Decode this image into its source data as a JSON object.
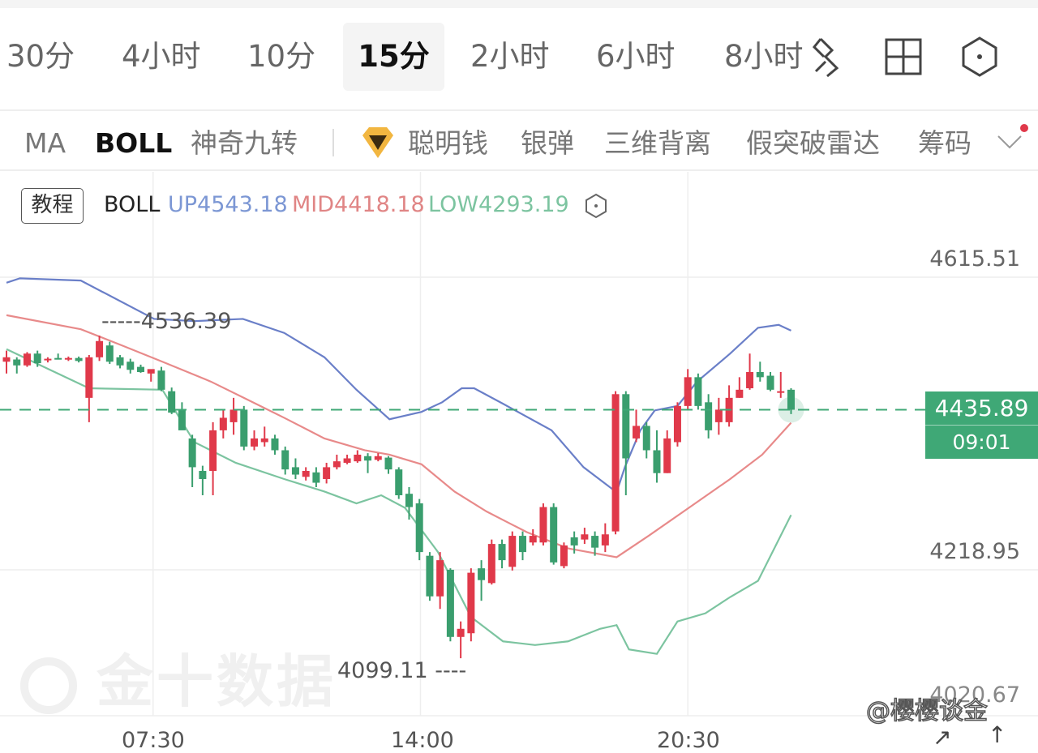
{
  "timeframes": [
    "30分",
    "4小时",
    "10分",
    "15分",
    "2小时",
    "6小时",
    "8小时"
  ],
  "active_timeframe": "15分",
  "toolbar_icons": [
    "draw-tool-icon",
    "layout-grid-icon",
    "settings-hexagon-icon"
  ],
  "indicators": [
    "MA",
    "BOLL",
    "神奇九转",
    "聪明钱",
    "银弹",
    "三维背离",
    "假突破雷达",
    "筹码"
  ],
  "active_indicator": "BOLL",
  "legend": {
    "tutorial": "教程",
    "name": "BOLL",
    "up": "UP4543.18",
    "mid": "MID4418.18",
    "low": "LOW4293.19"
  },
  "current_price": {
    "value": "4435.89",
    "countdown": "09:01"
  },
  "markers": {
    "high": "4536.39",
    "low": "4099.11"
  },
  "watermark": "金十数据",
  "weibo": "@樱樱谈金",
  "colors": {
    "up_candle": "#e0394a",
    "down_candle": "#3a9e6e",
    "boll_up": "#6a7fc8",
    "boll_mid": "#e88a8a",
    "boll_low": "#7cc4a0",
    "price_line": "#3fa876"
  },
  "chart_data": {
    "type": "candlestick",
    "interval": "15分",
    "y_ticks": [
      "4615.51",
      "4218.95",
      "4020.67"
    ],
    "x_ticks": [
      {
        "label": "07:30",
        "index": 14.2
      },
      {
        "label": "14:00",
        "index": 40.1
      },
      {
        "label": "20:30",
        "index": 66.0
      }
    ],
    "ylim": [
      4020.67,
      4758
    ],
    "grid": true,
    "candles_ohlc": [
      [
        4501,
        4516,
        4485,
        4507
      ],
      [
        4504,
        4507,
        4485,
        4496
      ],
      [
        4496,
        4514,
        4494,
        4512
      ],
      [
        4512,
        4516,
        4494,
        4499
      ],
      [
        4503,
        4507,
        4500,
        4505
      ],
      [
        4506,
        4512,
        4504,
        4504
      ],
      [
        4504,
        4508,
        4502,
        4506
      ],
      [
        4506,
        4508,
        4500,
        4502
      ],
      [
        4452,
        4510,
        4419,
        4507
      ],
      [
        4507,
        4536.39,
        4502,
        4529
      ],
      [
        4523,
        4528,
        4498,
        4501
      ],
      [
        4507,
        4510,
        4492,
        4496
      ],
      [
        4501,
        4505,
        4485,
        4490
      ],
      [
        4494,
        4497,
        4486,
        4487
      ],
      [
        4485,
        4490,
        4474,
        4491
      ],
      [
        4489,
        4494,
        4461,
        4463
      ],
      [
        4461,
        4466,
        4430,
        4432
      ],
      [
        4436,
        4446,
        4413,
        4408
      ],
      [
        4397,
        4402,
        4331,
        4358
      ],
      [
        4353,
        4360,
        4320,
        4342
      ],
      [
        4353,
        4419,
        4320,
        4408
      ],
      [
        4408,
        4436,
        4397,
        4425
      ],
      [
        4419,
        4452,
        4402,
        4436
      ],
      [
        4436,
        4441,
        4381,
        4386
      ],
      [
        4386,
        4408,
        4381,
        4397
      ],
      [
        4392,
        4413,
        4386,
        4397
      ],
      [
        4397,
        4402,
        4375,
        4381
      ],
      [
        4381,
        4386,
        4348,
        4355
      ],
      [
        4358,
        4370,
        4342,
        4348
      ],
      [
        4345,
        4358,
        4340,
        4353
      ],
      [
        4351,
        4358,
        4331,
        4337
      ],
      [
        4342,
        4364,
        4336,
        4358
      ],
      [
        4358,
        4375,
        4355,
        4366
      ],
      [
        4364,
        4375,
        4362,
        4370
      ],
      [
        4366,
        4381,
        4364,
        4375
      ],
      [
        4373,
        4377,
        4350,
        4367
      ],
      [
        4368,
        4377,
        4366,
        4373
      ],
      [
        4371,
        4373,
        4349,
        4355
      ],
      [
        4355,
        4358,
        4315,
        4320
      ],
      [
        4322,
        4331,
        4287,
        4304
      ],
      [
        4309,
        4315,
        4232,
        4243
      ],
      [
        4238,
        4243,
        4177,
        4183
      ],
      [
        4183,
        4243,
        4166,
        4232
      ],
      [
        4219,
        4221,
        4122,
        4128
      ],
      [
        4128,
        4149,
        4099.11,
        4139
      ],
      [
        4133,
        4221,
        4122,
        4215
      ],
      [
        4221,
        4232,
        4177,
        4205
      ],
      [
        4201,
        4260,
        4199,
        4254
      ],
      [
        4254,
        4260,
        4221,
        4232
      ],
      [
        4223,
        4271,
        4218,
        4265
      ],
      [
        4265,
        4271,
        4232,
        4243
      ],
      [
        4256,
        4274,
        4252,
        4265
      ],
      [
        4256,
        4309,
        4252,
        4304
      ],
      [
        4304,
        4309,
        4226,
        4229
      ],
      [
        4224,
        4256,
        4221,
        4252
      ],
      [
        4263,
        4271,
        4241,
        4252
      ],
      [
        4260,
        4276,
        4254,
        4267
      ],
      [
        4265,
        4271,
        4238,
        4249
      ],
      [
        4252,
        4282,
        4243,
        4267
      ],
      [
        4271,
        4461,
        4267,
        4457
      ],
      [
        4457,
        4461,
        4320,
        4370
      ],
      [
        4397,
        4436,
        4392,
        4414
      ],
      [
        4414,
        4419,
        4370,
        4381
      ],
      [
        4381,
        4408,
        4337,
        4350
      ],
      [
        4350,
        4408,
        4350,
        4397
      ],
      [
        4392,
        4446,
        4386,
        4441
      ],
      [
        4441,
        4491,
        4436,
        4480
      ],
      [
        4480,
        4485,
        4436,
        4441
      ],
      [
        4446,
        4457,
        4397,
        4408
      ],
      [
        4419,
        4452,
        4402,
        4436
      ],
      [
        4419,
        4469,
        4413,
        4452
      ],
      [
        4452,
        4480,
        4452,
        4463
      ],
      [
        4465,
        4512,
        4463,
        4487
      ],
      [
        4487,
        4501,
        4474,
        4480
      ],
      [
        4482,
        4487,
        4461,
        4463
      ],
      [
        4459,
        4487,
        4452,
        4461
      ],
      [
        4463,
        4465,
        4430,
        4435.89
      ]
    ],
    "boll_up": [
      [
        0,
        4608
      ],
      [
        1.3,
        4614
      ],
      [
        7.2,
        4611
      ],
      [
        14.3,
        4559
      ],
      [
        18.2,
        4556
      ],
      [
        22.9,
        4559
      ],
      [
        26.9,
        4540
      ],
      [
        30.8,
        4507
      ],
      [
        33.9,
        4463
      ],
      [
        37.1,
        4423
      ],
      [
        40.2,
        4433
      ],
      [
        42.2,
        4446
      ],
      [
        44.1,
        4465
      ],
      [
        45.3,
        4465
      ],
      [
        48.1,
        4444
      ],
      [
        52.8,
        4408
      ],
      [
        55.9,
        4358
      ],
      [
        59.1,
        4324
      ],
      [
        59.9,
        4358
      ],
      [
        61.4,
        4408
      ],
      [
        62.8,
        4435
      ],
      [
        65,
        4441
      ],
      [
        66.9,
        4474
      ],
      [
        70.1,
        4512
      ],
      [
        72.8,
        4547
      ],
      [
        74.8,
        4551
      ],
      [
        76,
        4543.18
      ]
    ],
    "boll_mid": [
      [
        0,
        4564
      ],
      [
        7.2,
        4545
      ],
      [
        11.2,
        4523
      ],
      [
        15.1,
        4501
      ],
      [
        19.8,
        4474
      ],
      [
        23,
        4452
      ],
      [
        26.9,
        4425
      ],
      [
        30.8,
        4397
      ],
      [
        34.7,
        4381
      ],
      [
        37.1,
        4375
      ],
      [
        40.2,
        4362
      ],
      [
        43.4,
        4325
      ],
      [
        46.5,
        4298
      ],
      [
        50.4,
        4270
      ],
      [
        54.4,
        4248
      ],
      [
        59.1,
        4236
      ],
      [
        62.2,
        4265
      ],
      [
        66.1,
        4303
      ],
      [
        70.1,
        4342
      ],
      [
        73.2,
        4375
      ],
      [
        76,
        4418.18
      ]
    ],
    "boll_low": [
      [
        0,
        4518
      ],
      [
        3.3,
        4496
      ],
      [
        8,
        4465
      ],
      [
        15.1,
        4463
      ],
      [
        18.2,
        4392
      ],
      [
        22.2,
        4364
      ],
      [
        26.9,
        4342
      ],
      [
        30.8,
        4325
      ],
      [
        33.9,
        4309
      ],
      [
        36.3,
        4320
      ],
      [
        38.6,
        4303
      ],
      [
        41.8,
        4243
      ],
      [
        45,
        4155
      ],
      [
        48.1,
        4122
      ],
      [
        51.2,
        4117
      ],
      [
        54.4,
        4122
      ],
      [
        57.5,
        4139
      ],
      [
        59.1,
        4144
      ],
      [
        60.3,
        4111
      ],
      [
        63,
        4105
      ],
      [
        65,
        4149
      ],
      [
        67.7,
        4160
      ],
      [
        70.1,
        4182
      ],
      [
        72.8,
        4204
      ],
      [
        76,
        4293.19
      ]
    ]
  }
}
